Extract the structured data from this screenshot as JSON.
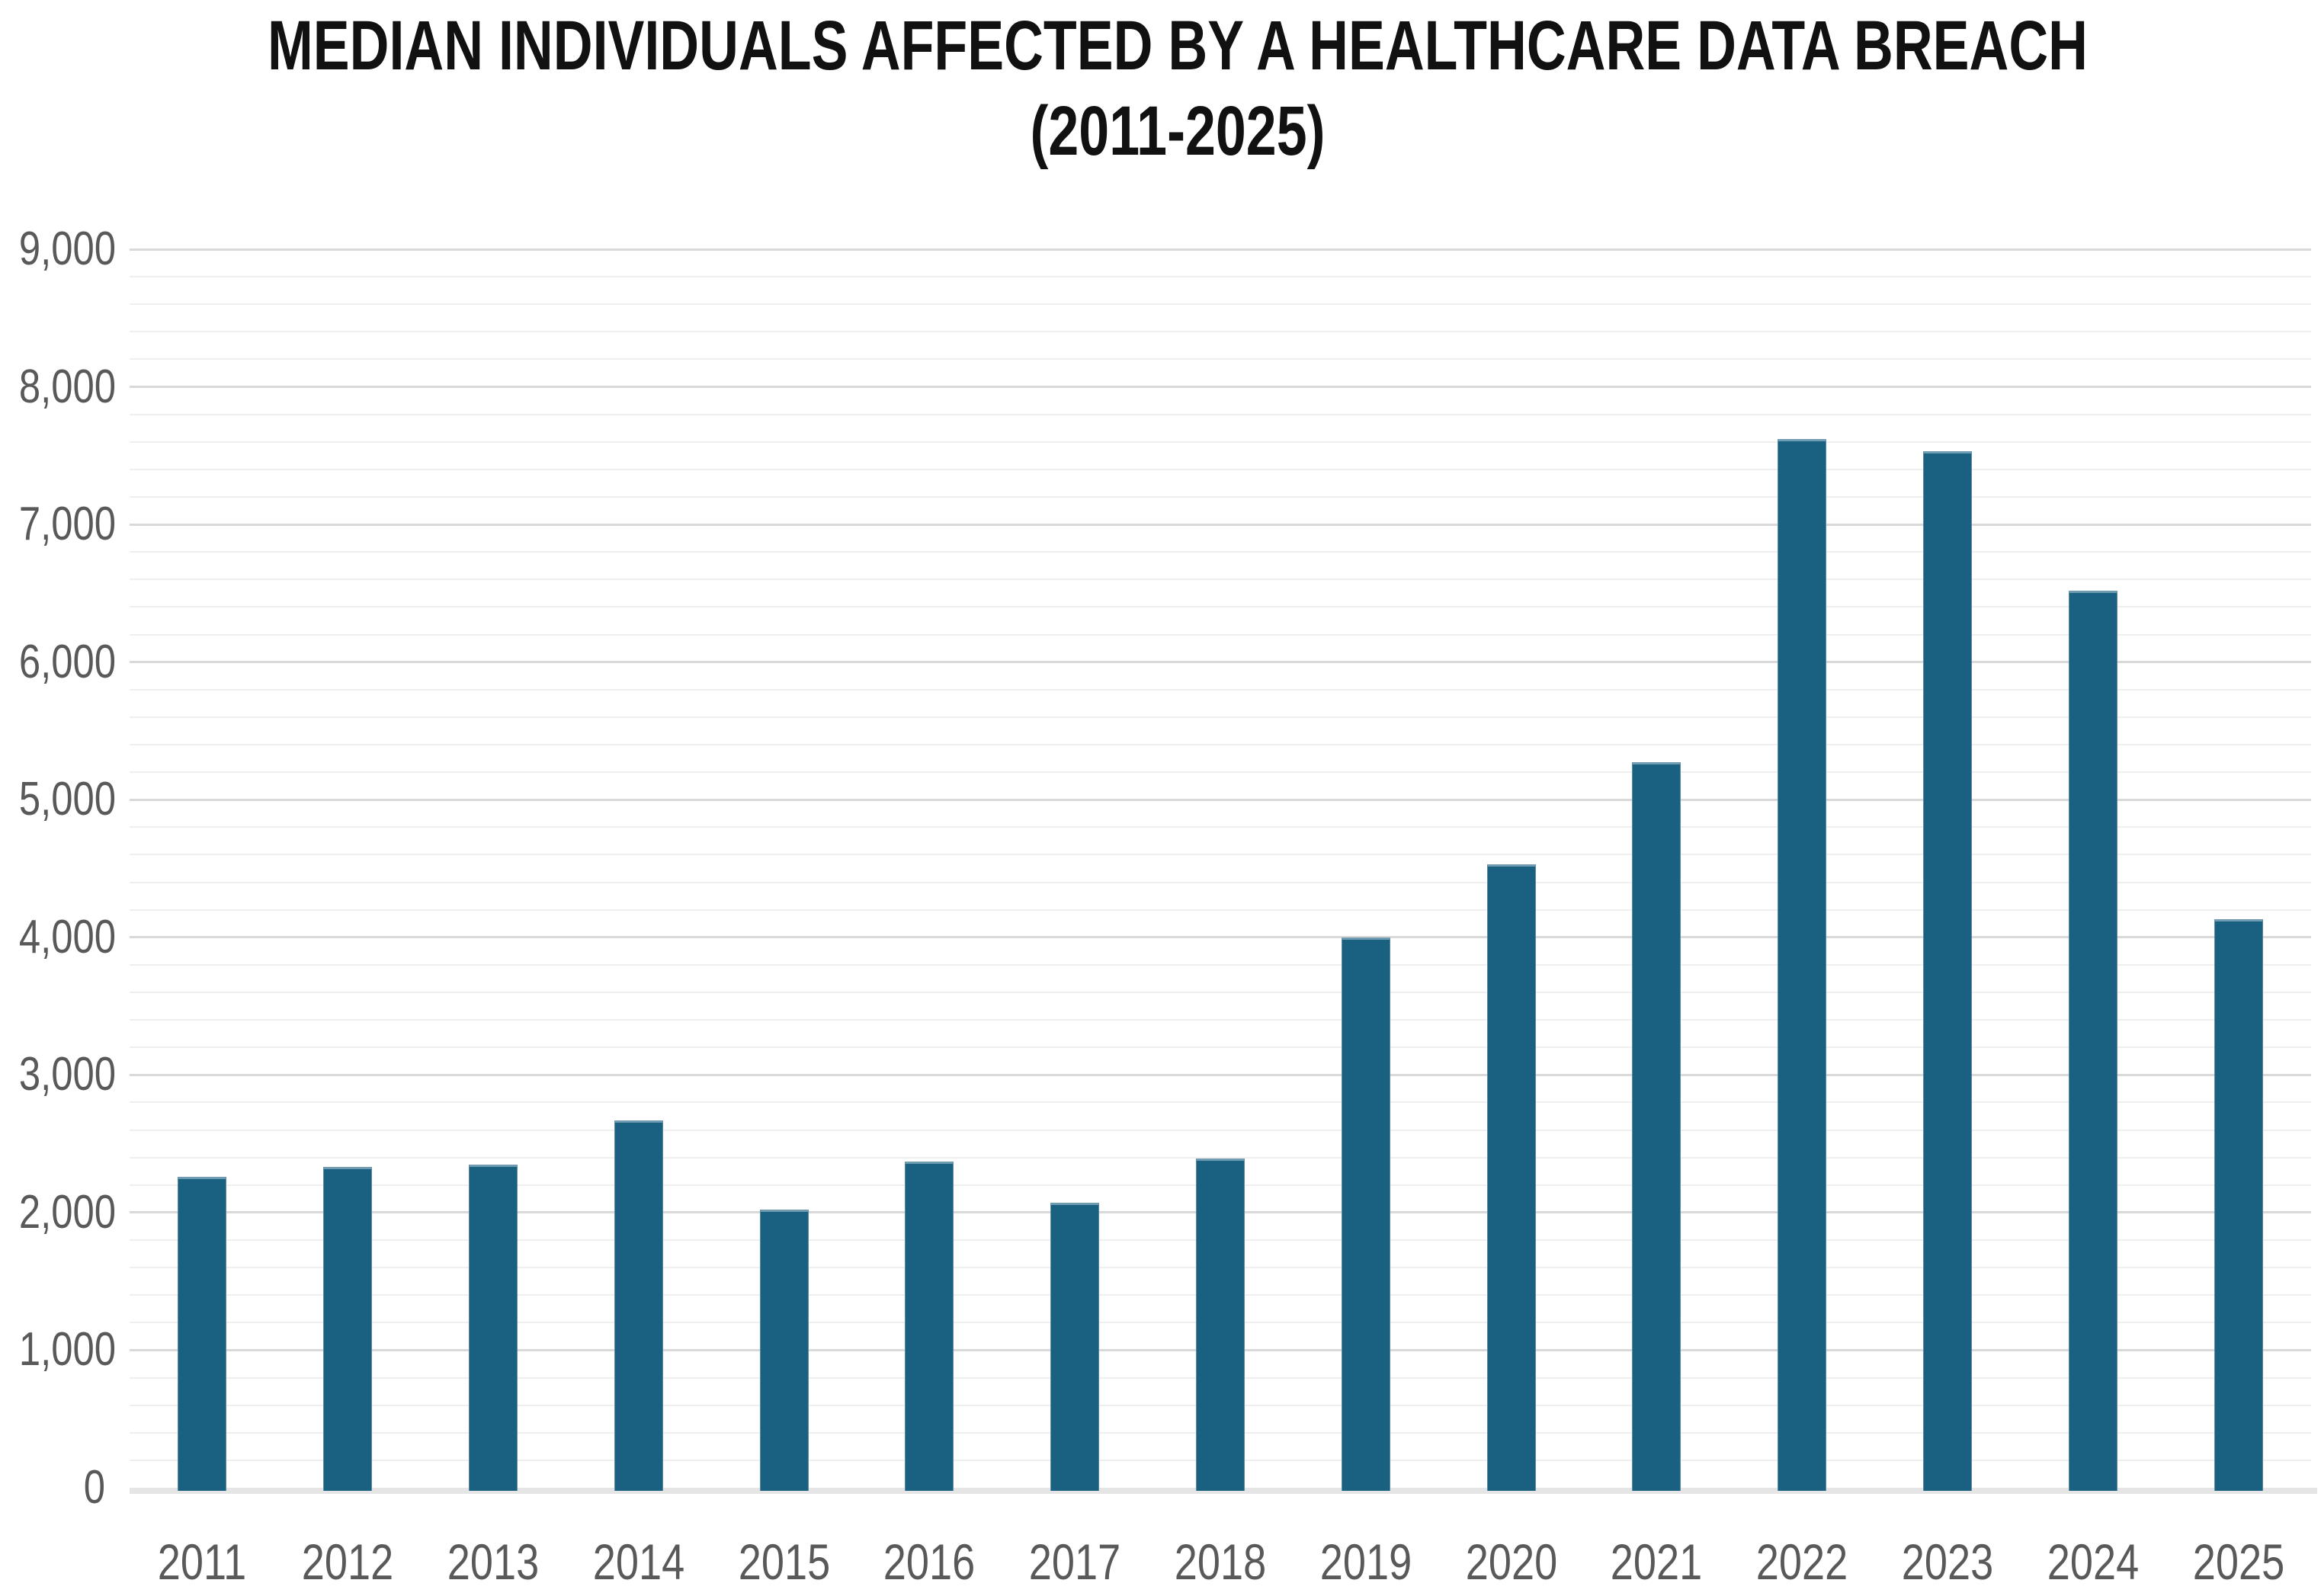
{
  "title": {
    "line1": "MEDIAN INDIVIDUALS AFFECTED BY A HEALTHCARE DATA BREACH",
    "line2": "(2011-2025)"
  },
  "chart_data": {
    "type": "bar",
    "title": "MEDIAN INDIVIDUALS AFFECTED BY A HEALTHCARE DATA BREACH (2011-2025)",
    "categories": [
      "2011",
      "2012",
      "2013",
      "2014",
      "2015",
      "2016",
      "2017",
      "2018",
      "2019",
      "2020",
      "2021",
      "2022",
      "2023",
      "2024",
      "2025"
    ],
    "values": [
      2260,
      2330,
      2350,
      2670,
      2020,
      2370,
      2070,
      2390,
      4000,
      4530,
      5270,
      7620,
      7530,
      6520,
      4130
    ],
    "xlabel": "",
    "ylabel": "",
    "ylim": [
      0,
      9000
    ],
    "ytick_interval": 1000,
    "minor_gridline_interval": 200,
    "y_tick_labels": [
      "0",
      "1,000",
      "2,000",
      "3,000",
      "4,000",
      "5,000",
      "6,000",
      "7,000",
      "8,000",
      "9,000"
    ],
    "grid": true,
    "legend": "none",
    "bar_color": "#1A6080",
    "bar_top_edge_color": "#6f9cb0",
    "major_gridline_color": "#d9d9d9",
    "minor_gridline_color": "#efefef",
    "axis_band_color": "#e5e5e5",
    "label_color": "#595959",
    "title_color": "#111111"
  }
}
